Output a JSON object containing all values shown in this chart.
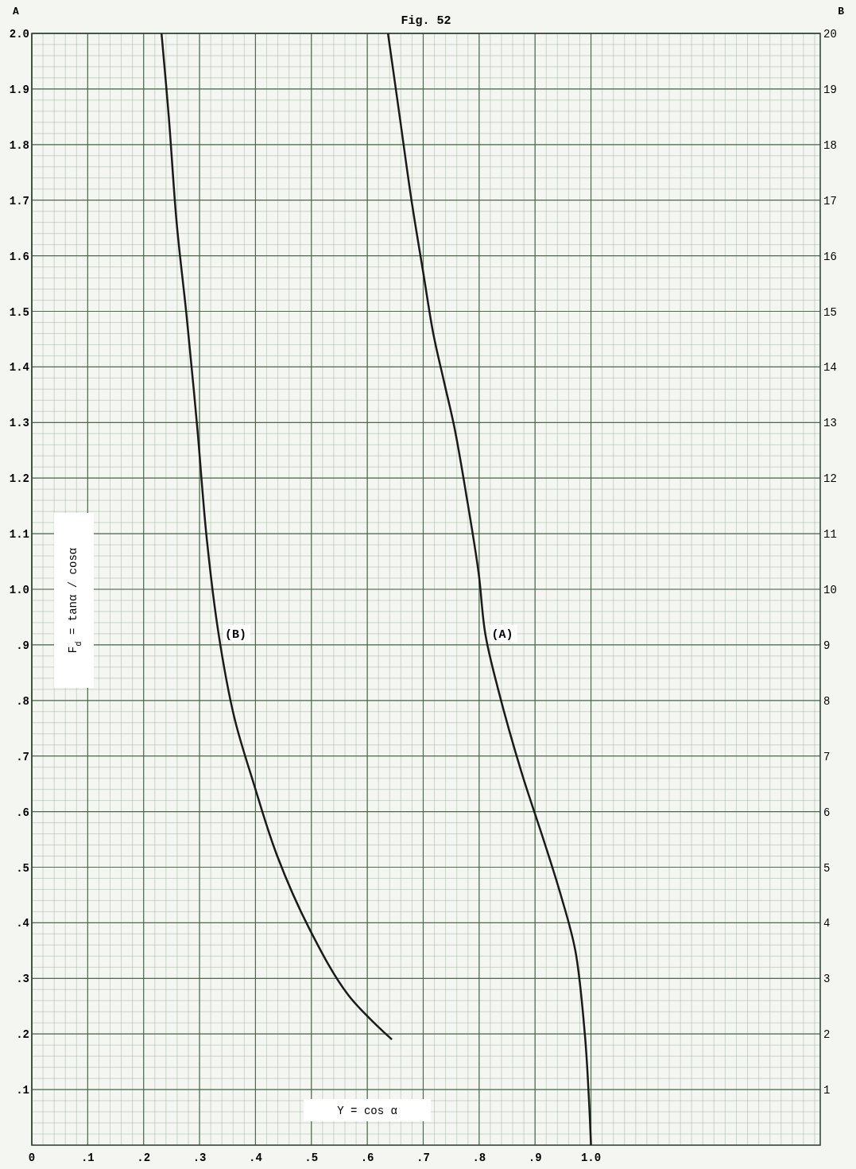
{
  "chart_data": {
    "type": "line",
    "title": "Fig. 52",
    "xlabel": "Y = cos α",
    "ylabel": "F$_{d}$ = tanα / cosα",
    "annotations": [
      "A",
      "B"
    ],
    "xlim": [
      0,
      1.41
    ],
    "xticks": [
      0,
      {
        "value": 0.1,
        "label": ".1"
      },
      {
        "value": 0.2,
        "label": ".2"
      },
      {
        "value": 0.3,
        "label": ".3"
      },
      {
        "value": 0.4,
        "label": ".4"
      },
      {
        "value": 0.5,
        "label": ".5"
      },
      {
        "value": 0.6,
        "label": ".6"
      },
      {
        "value": 0.7,
        "label": ".7"
      },
      {
        "value": 0.8,
        "label": ".8"
      },
      {
        "value": 0.9,
        "label": ".9"
      },
      {
        "value": 1,
        "label": "1.0"
      }
    ],
    "ylim": [
      0,
      2
    ],
    "yticks": [
      {
        "value": 0.1,
        "label": ".1"
      },
      {
        "value": 0.2,
        "label": ".2"
      },
      {
        "value": 0.3,
        "label": ".3"
      },
      {
        "value": 0.4,
        "label": ".4"
      },
      {
        "value": 0.5,
        "label": ".5"
      },
      {
        "value": 0.6,
        "label": ".6"
      },
      {
        "value": 0.7,
        "label": ".7"
      },
      {
        "value": 0.8,
        "label": ".8"
      },
      {
        "value": 0.9,
        "label": ".9"
      },
      {
        "value": 1,
        "label": "1.0"
      },
      1.1,
      1.2,
      1.3,
      1.4,
      1.5,
      1.6,
      1.7,
      1.8,
      1.9,
      {
        "value": 2,
        "label": "2.0"
      }
    ],
    "y2lim": [
      0,
      20
    ],
    "y2ticks": [
      1,
      2,
      3,
      4,
      5,
      6,
      7,
      8,
      9,
      10,
      11,
      12,
      13,
      14,
      15,
      16,
      17,
      18,
      19,
      20
    ],
    "grid": true,
    "marker": "none",
    "line_style": "solid",
    "series": [
      {
        "name": "(A)",
        "color": "#1a1a1a",
        "x": [
          0.637,
          0.658,
          0.679,
          0.7,
          0.718,
          0.738,
          0.756,
          0.777,
          0.799,
          0.811,
          0.834,
          0.876,
          0.915,
          0.946,
          0.972,
          0.989,
          0.996,
          1.0
        ],
        "values": [
          2.0,
          1.85,
          1.7,
          1.57,
          1.46,
          1.37,
          1.29,
          1.17,
          1.03,
          0.92,
          0.82,
          0.67,
          0.55,
          0.45,
          0.35,
          0.2,
          0.09,
          0.0
        ]
      },
      {
        "name": "(B)",
        "color": "#1a1a1a",
        "axis": "y2",
        "x": [
          0.232,
          0.245,
          0.259,
          0.277,
          0.296,
          0.313,
          0.334,
          0.362,
          0.397,
          0.439,
          0.496,
          0.566,
          0.644
        ],
        "values": [
          20.0,
          18.5,
          16.6,
          14.9,
          12.9,
          10.9,
          9.2,
          7.7,
          6.5,
          5.2,
          3.9,
          2.7,
          1.9
        ]
      }
    ]
  }
}
